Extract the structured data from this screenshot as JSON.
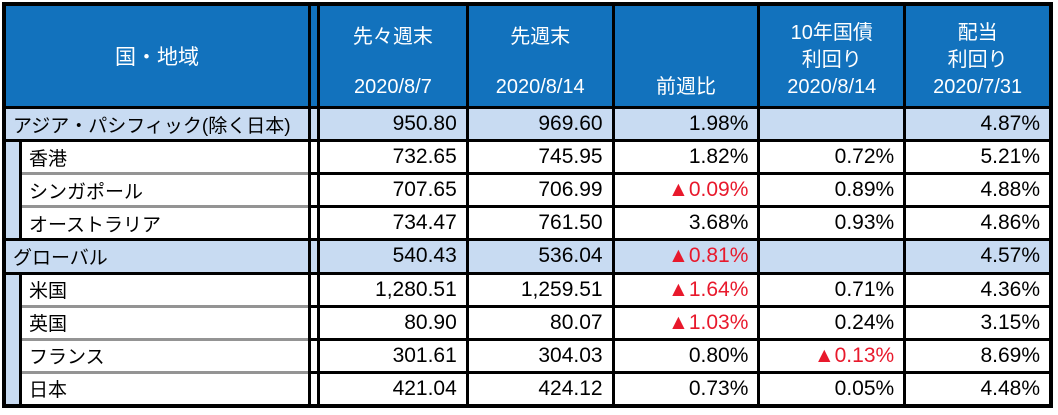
{
  "colors": {
    "header_bg": "#1272bd",
    "header_text": "#ffffff",
    "region_row_bg": "#c8dbf2",
    "negative_value": "#e8192c",
    "grid_border": "#000000",
    "subrow_divider": "#949494"
  },
  "chart_data": {
    "type": "table",
    "header": {
      "region_label": "国・地域",
      "columns": [
        {
          "lines": [
            "先々週末",
            "2020/8/7"
          ]
        },
        {
          "lines": [
            "先週末",
            "2020/8/14"
          ]
        },
        {
          "lines": [
            "前週比"
          ]
        },
        {
          "lines": [
            "10年国債",
            "利回り",
            "2020/8/14"
          ]
        },
        {
          "lines": [
            "配当",
            "利回り",
            "2020/7/31"
          ]
        }
      ]
    },
    "rows": [
      {
        "name": "アジア・パシフィック(除く日本)",
        "level": "region",
        "values": [
          "950.80",
          "969.60",
          "1.98%",
          "",
          "4.87%"
        ]
      },
      {
        "name": "香港",
        "level": "sub",
        "values": [
          "732.65",
          "745.95",
          "1.82%",
          "0.72%",
          "5.21%"
        ]
      },
      {
        "name": "シンガポール",
        "level": "sub",
        "values": [
          "707.65",
          "706.99",
          "▲0.09%",
          "0.89%",
          "4.88%"
        ]
      },
      {
        "name": "オーストラリア",
        "level": "sub",
        "values": [
          "734.47",
          "761.50",
          "3.68%",
          "0.93%",
          "4.86%"
        ]
      },
      {
        "name": "グローバル",
        "level": "region",
        "values": [
          "540.43",
          "536.04",
          "▲0.81%",
          "",
          "4.57%"
        ]
      },
      {
        "name": "米国",
        "level": "sub",
        "values": [
          "1,280.51",
          "1,259.51",
          "▲1.64%",
          "0.71%",
          "4.36%"
        ]
      },
      {
        "name": "英国",
        "level": "sub",
        "values": [
          "80.90",
          "80.07",
          "▲1.03%",
          "0.24%",
          "3.15%"
        ]
      },
      {
        "name": "フランス",
        "level": "sub",
        "values": [
          "301.61",
          "304.03",
          "0.80%",
          "▲0.13%",
          "8.69%"
        ]
      },
      {
        "name": "日本",
        "level": "sub",
        "values": [
          "421.04",
          "424.12",
          "0.73%",
          "0.05%",
          "4.48%"
        ]
      }
    ]
  }
}
